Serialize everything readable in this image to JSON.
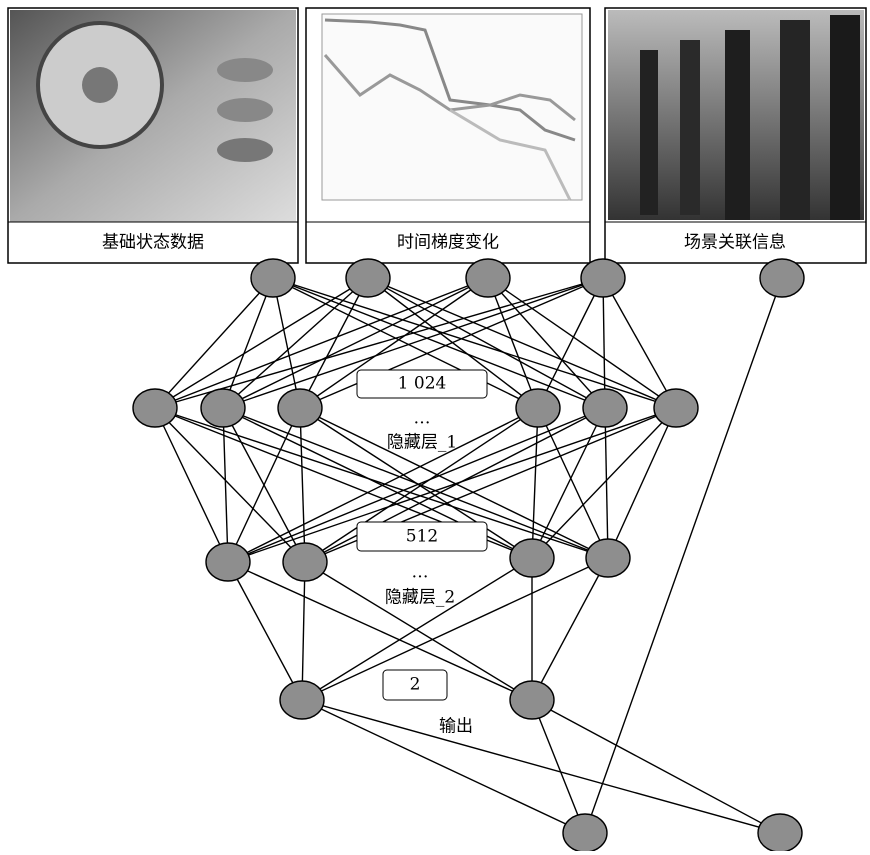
{
  "panels": [
    {
      "label": "基础状态数据"
    },
    {
      "label": "时间梯度变化"
    },
    {
      "label": "场景关联信息"
    }
  ],
  "layers": [
    {
      "size": "1 024",
      "ellipsis": "…",
      "name": "隐藏层_1"
    },
    {
      "size": "512",
      "ellipsis": "…",
      "name": "隐藏层_2"
    },
    {
      "size": "2",
      "name": "输出"
    }
  ]
}
